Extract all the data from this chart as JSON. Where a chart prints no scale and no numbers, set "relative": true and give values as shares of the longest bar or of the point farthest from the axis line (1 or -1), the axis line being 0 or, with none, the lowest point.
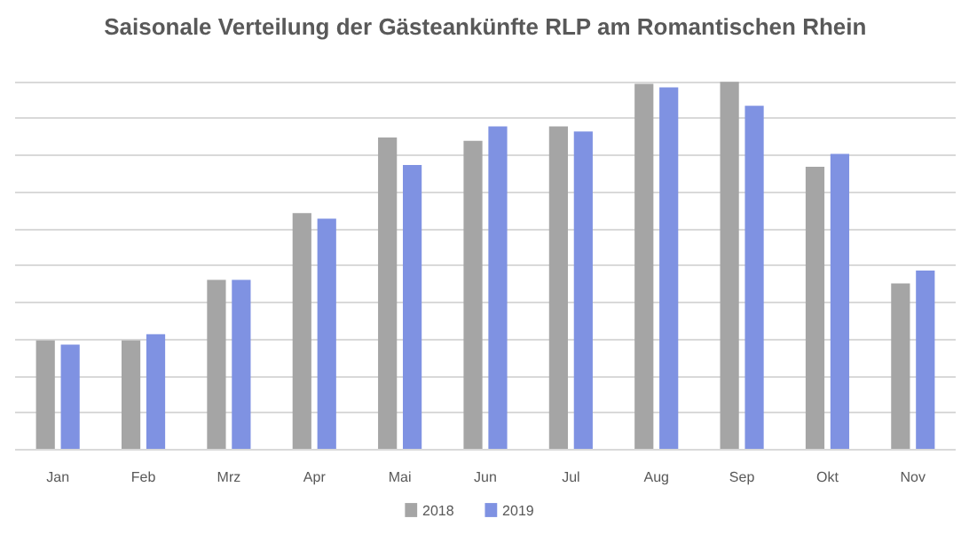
{
  "chart_data": {
    "type": "bar",
    "title": "Saisonale Verteilung der Gästeankünfte RLP am Romantischen Rhein",
    "relative": true,
    "categories": [
      "Jan",
      "Feb",
      "Mrz",
      "Apr",
      "Mai",
      "Jun",
      "Jul",
      "Aug",
      "Sep",
      "Okt",
      "Nov"
    ],
    "series": [
      {
        "name": "2018",
        "color": "#a5a5a5",
        "values": [
          0.297,
          0.297,
          0.462,
          0.643,
          0.849,
          0.84,
          0.879,
          0.995,
          1,
          0.769,
          0.452
        ]
      },
      {
        "name": "2019",
        "color": "#7f92e2",
        "values": [
          0.286,
          0.314,
          0.462,
          0.628,
          0.774,
          0.879,
          0.865,
          0.985,
          0.935,
          0.804,
          0.487
        ]
      }
    ],
    "grid": "y",
    "legend": "bottom"
  }
}
